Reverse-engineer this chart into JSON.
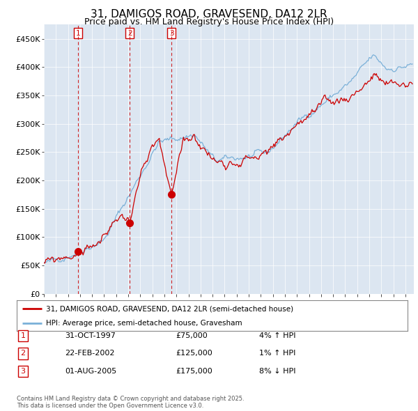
{
  "title1": "31, DAMIGOS ROAD, GRAVESEND, DA12 2LR",
  "title2": "Price paid vs. HM Land Registry's House Price Index (HPI)",
  "ylim": [
    0,
    475000
  ],
  "yticks": [
    0,
    50000,
    100000,
    150000,
    200000,
    250000,
    300000,
    350000,
    400000,
    450000
  ],
  "ytick_labels": [
    "£0",
    "£50K",
    "£100K",
    "£150K",
    "£200K",
    "£250K",
    "£300K",
    "£350K",
    "£400K",
    "£450K"
  ],
  "xlim_start": 1995.0,
  "xlim_end": 2025.7,
  "purchases": [
    {
      "id": 1,
      "date_label": "31-OCT-1997",
      "year": 1997.83,
      "price": 75000,
      "pct": "4%",
      "direction": "↑"
    },
    {
      "id": 2,
      "date_label": "22-FEB-2002",
      "year": 2002.12,
      "price": 125000,
      "pct": "1%",
      "direction": "↑"
    },
    {
      "id": 3,
      "date_label": "01-AUG-2005",
      "year": 2005.58,
      "price": 175000,
      "pct": "8%",
      "direction": "↓"
    }
  ],
  "legend_line1": "31, DAMIGOS ROAD, GRAVESEND, DA12 2LR (semi-detached house)",
  "legend_line2": "HPI: Average price, semi-detached house, Gravesham",
  "footer": "Contains HM Land Registry data © Crown copyright and database right 2025.\nThis data is licensed under the Open Government Licence v3.0.",
  "red_color": "#cc0000",
  "blue_color": "#7ab0d8",
  "bg_color": "#dce6f1",
  "title_fontsize": 11,
  "subtitle_fontsize": 9
}
